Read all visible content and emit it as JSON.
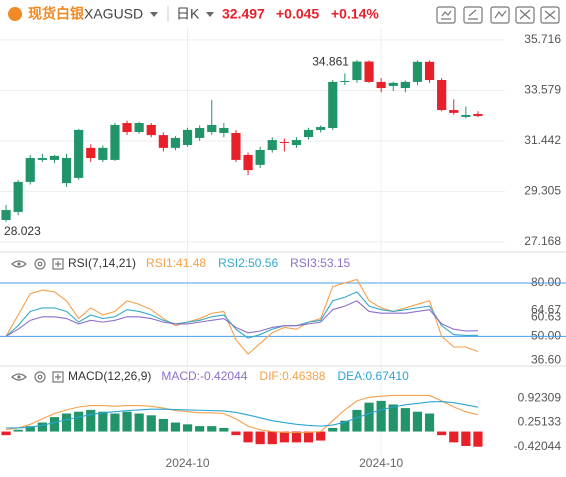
{
  "header": {
    "name": "现货白银",
    "symbol": "XAGUSD",
    "period": "日K",
    "price": 32.497,
    "change": "+0.045",
    "change_pct": "+0.14%"
  },
  "chart_data": [
    {
      "type": "candlestick",
      "categories": [
        null,
        null,
        null,
        null,
        null,
        null,
        null,
        null,
        null,
        null,
        null,
        null,
        null,
        null,
        null,
        "2024-10",
        null,
        null,
        null,
        null,
        null,
        null,
        null,
        null,
        null,
        null,
        null,
        null,
        null,
        null,
        null,
        "2024-10",
        null,
        null,
        null,
        null,
        null,
        null,
        null,
        null
      ],
      "open": [
        28.1,
        28.44,
        29.71,
        30.64,
        30.64,
        29.66,
        29.88,
        31.15,
        30.64,
        30.64,
        32.2,
        31.82,
        32.12,
        31.69,
        31.15,
        31.27,
        31.57,
        31.82,
        31.78,
        31.78,
        30.85,
        30.43,
        31.06,
        31.4,
        31.27,
        31.61,
        31.91,
        31.99,
        33.94,
        34.02,
        34.8,
        33.94,
        33.77,
        33.68,
        33.94,
        34.79,
        34.02,
        32.75,
        32.46,
        32.58
      ],
      "high": [
        28.73,
        29.79,
        30.85,
        30.9,
        30.85,
        30.9,
        31.95,
        31.3,
        31.25,
        32.2,
        32.3,
        32.25,
        32.2,
        31.8,
        31.65,
        32.0,
        32.1,
        33.18,
        32.2,
        31.9,
        30.95,
        31.2,
        31.6,
        31.55,
        31.6,
        32.0,
        32.1,
        34.02,
        34.3,
        34.861,
        34.85,
        34.1,
        33.95,
        34.0,
        34.85,
        34.85,
        34.1,
        33.2,
        32.9,
        32.7
      ],
      "low": [
        28.023,
        28.3,
        29.6,
        30.55,
        30.5,
        29.5,
        29.8,
        30.55,
        30.55,
        30.6,
        31.7,
        31.75,
        31.6,
        31.0,
        31.05,
        31.2,
        31.45,
        31.7,
        31.6,
        30.55,
        30.0,
        30.3,
        30.95,
        31.0,
        31.15,
        31.5,
        31.8,
        31.9,
        33.8,
        33.9,
        33.9,
        33.5,
        33.55,
        33.5,
        33.8,
        33.9,
        32.7,
        32.55,
        32.4,
        32.45
      ],
      "close": [
        28.52,
        29.71,
        30.72,
        30.72,
        30.81,
        30.72,
        31.91,
        30.72,
        31.15,
        32.12,
        31.82,
        32.2,
        31.69,
        31.15,
        31.57,
        31.91,
        31.99,
        32.12,
        31.99,
        30.64,
        30.21,
        31.06,
        31.48,
        31.36,
        31.48,
        31.91,
        32.03,
        33.94,
        33.98,
        34.8,
        33.94,
        33.68,
        33.9,
        33.94,
        34.79,
        34.02,
        32.75,
        32.63,
        32.54,
        32.497
      ],
      "up_color": "#22946a",
      "down_color": "#e8202a",
      "ylim": [
        26.83,
        36.22
      ],
      "yticks": [
        35.716,
        33.579,
        31.442,
        29.305,
        27.168
      ],
      "grid": true
    },
    {
      "type": "line",
      "title": "RSI(7,14,21)",
      "series": [
        {
          "name": "RSI1:41.48",
          "color": "#f5a04a",
          "values": [
            50,
            62,
            74,
            76,
            75,
            70,
            60,
            66,
            62,
            64,
            70,
            68,
            65,
            60,
            56,
            58,
            60,
            63,
            64,
            48,
            40,
            46,
            52,
            55,
            54,
            58,
            60,
            78,
            80,
            82,
            70,
            66,
            64,
            66,
            68,
            70,
            50,
            44,
            44,
            41.48
          ]
        },
        {
          "name": "RSI2:50.56",
          "color": "#36a9c9",
          "values": [
            50,
            56,
            64,
            66,
            66,
            64,
            58,
            62,
            60,
            61,
            65,
            64,
            62,
            59,
            57,
            58,
            59,
            61,
            62,
            54,
            49,
            51,
            54,
            56,
            56,
            58,
            59,
            70,
            72,
            75,
            67,
            65,
            64,
            65,
            66,
            67,
            56,
            51,
            50.5,
            50.56
          ]
        },
        {
          "name": "RSI3:53.15",
          "color": "#8e6fc8",
          "values": [
            50,
            54,
            59,
            61,
            61,
            60,
            57,
            59,
            58,
            59,
            61,
            61,
            60,
            58,
            57,
            57,
            58,
            59,
            60,
            55,
            52,
            53,
            55,
            56,
            56,
            57,
            58,
            65,
            67,
            70,
            64,
            63,
            63,
            63,
            64,
            65,
            57,
            54,
            53,
            53.15
          ]
        }
      ],
      "hlines": [
        80,
        50
      ],
      "hline_color": "#4a9ee8",
      "ylim": [
        35,
        84.5
      ],
      "yticks": [
        {
          "value": 80,
          "label": "80.00"
        },
        64.67,
        60.63,
        {
          "value": 50,
          "label": "50.00"
        },
        {
          "value": 36.6,
          "label": "36.60"
        }
      ]
    },
    {
      "type": "line",
      "title": "MACD(12,26,9)",
      "series": [
        {
          "name": "MACD:-0.42044",
          "type": "bar",
          "color": "#8e6fc8",
          "up_color": "#22946a",
          "down_color": "#e8202a",
          "values": [
            -0.1,
            0.05,
            0.15,
            0.25,
            0.4,
            0.5,
            0.55,
            0.6,
            0.55,
            0.5,
            0.55,
            0.5,
            0.45,
            0.35,
            0.25,
            0.2,
            0.15,
            0.15,
            0.1,
            -0.1,
            -0.3,
            -0.35,
            -0.35,
            -0.3,
            -0.3,
            -0.3,
            -0.25,
            0.1,
            0.3,
            0.6,
            0.8,
            0.85,
            0.75,
            0.65,
            0.55,
            0.5,
            -0.1,
            -0.3,
            -0.4,
            -0.42044
          ]
        },
        {
          "name": "DIF:0.46388",
          "color": "#f5a04a",
          "values": [
            0.05,
            0.1,
            0.2,
            0.35,
            0.5,
            0.6,
            0.68,
            0.72,
            0.72,
            0.7,
            0.72,
            0.72,
            0.7,
            0.65,
            0.58,
            0.55,
            0.52,
            0.52,
            0.5,
            0.35,
            0.15,
            0.05,
            0.0,
            -0.02,
            -0.03,
            -0.02,
            0.0,
            0.3,
            0.6,
            0.85,
            0.95,
            0.98,
            1.0,
            1.0,
            1.0,
            1.0,
            0.85,
            0.68,
            0.55,
            0.46388
          ]
        },
        {
          "name": "DEA:0.67410",
          "color": "#2aa4d6",
          "values": [
            0.1,
            0.1,
            0.12,
            0.17,
            0.25,
            0.33,
            0.4,
            0.47,
            0.52,
            0.55,
            0.58,
            0.6,
            0.62,
            0.62,
            0.61,
            0.6,
            0.59,
            0.58,
            0.57,
            0.53,
            0.46,
            0.38,
            0.3,
            0.25,
            0.2,
            0.17,
            0.15,
            0.18,
            0.26,
            0.38,
            0.5,
            0.6,
            0.68,
            0.74,
            0.78,
            0.82,
            0.83,
            0.8,
            0.74,
            0.6741
          ]
        }
      ],
      "ylim": [
        -0.65,
        1.29
      ],
      "yticks": [
        0.92309,
        0.25133,
        -0.42044
      ]
    }
  ]
}
